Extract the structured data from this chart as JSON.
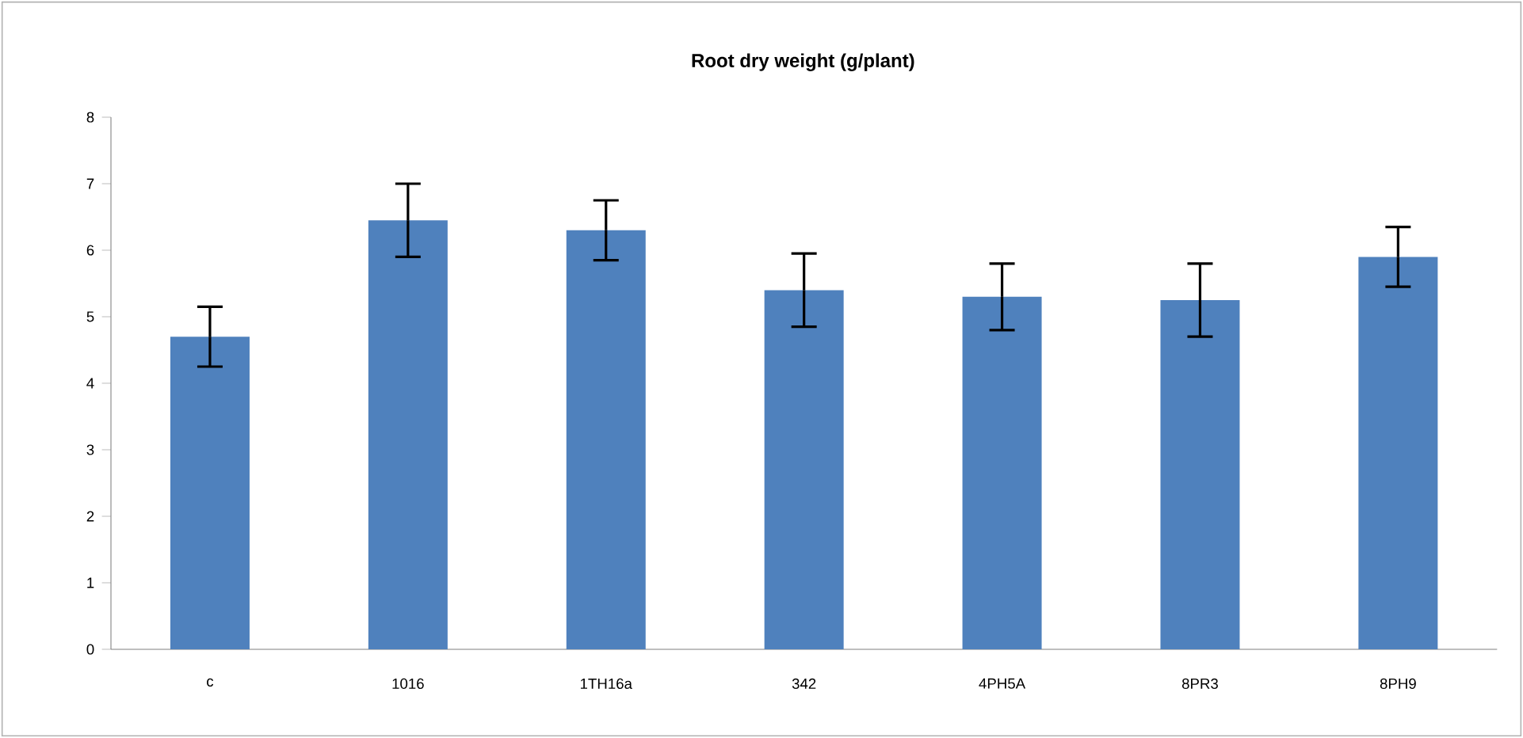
{
  "chart_data": {
    "type": "bar",
    "title": "Root dry weight (g/plant)",
    "categories": [
      "c",
      "1016",
      "1TH16a",
      "342",
      "4PH5A",
      "8PR3",
      "8PH9"
    ],
    "values": [
      4.7,
      6.45,
      6.3,
      5.4,
      5.3,
      5.25,
      5.9
    ],
    "errors": [
      0.45,
      0.55,
      0.45,
      0.55,
      0.5,
      0.55,
      0.45
    ],
    "color": "#4f81bd",
    "ylim": [
      0,
      8
    ],
    "yticks": [
      0,
      1,
      2,
      3,
      4,
      5,
      6,
      7,
      8
    ]
  }
}
